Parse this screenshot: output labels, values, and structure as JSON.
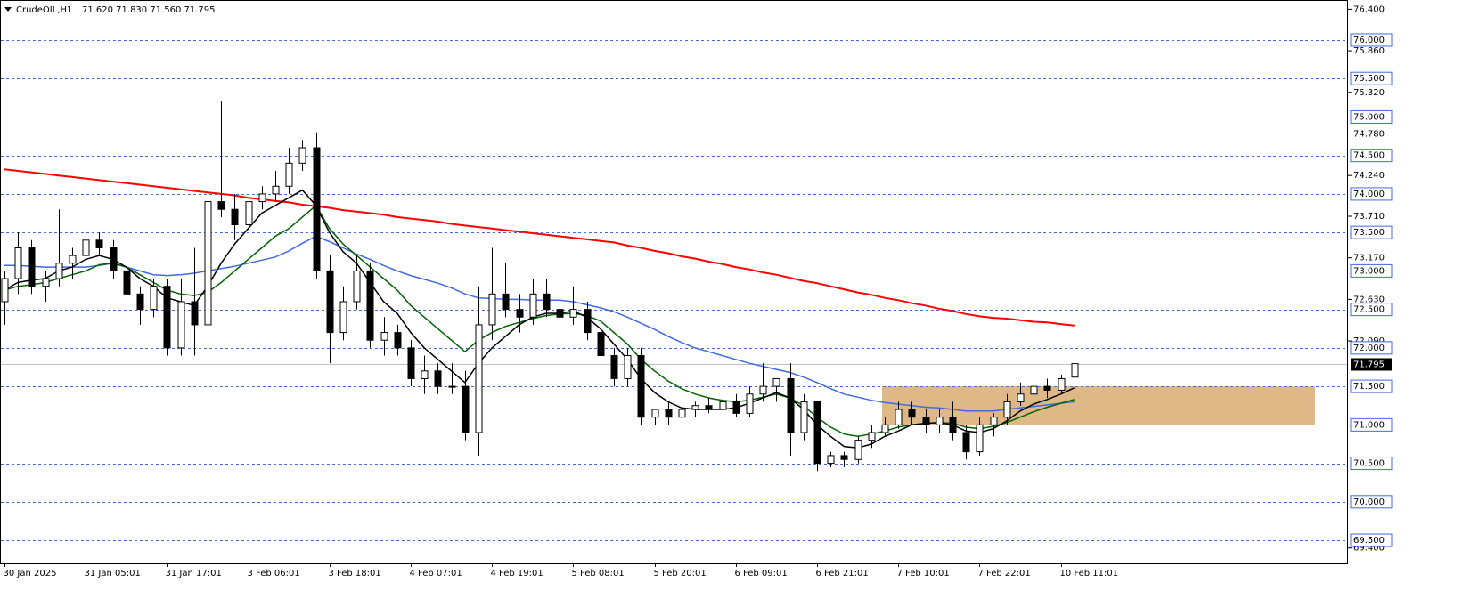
{
  "chart_data": {
    "type": "candlestick",
    "title": "CrudeOIL,H1",
    "header_values": "71.620 71.830 71.560 71.795",
    "categories": [
      "30 Jan 2025",
      null,
      null,
      null,
      null,
      null,
      "31 Jan 05:01",
      null,
      null,
      null,
      null,
      null,
      "31 Jan 17:01",
      null,
      null,
      null,
      null,
      null,
      "3 Feb 06:01",
      null,
      null,
      null,
      null,
      null,
      "3 Feb 18:01",
      null,
      null,
      null,
      null,
      null,
      "4 Feb 07:01",
      null,
      null,
      null,
      null,
      null,
      "4 Feb 19:01",
      null,
      null,
      null,
      null,
      null,
      "5 Feb 08:01",
      null,
      null,
      null,
      null,
      null,
      "5 Feb 20:01",
      null,
      null,
      null,
      null,
      null,
      "6 Feb 09:01",
      null,
      null,
      null,
      null,
      null,
      "6 Feb 21:01",
      null,
      null,
      null,
      null,
      null,
      "7 Feb 10:01",
      null,
      null,
      null,
      null,
      null,
      "7 Feb 22:01",
      null,
      null,
      null,
      null,
      null,
      "10 Feb 11:01",
      null
    ],
    "open": [
      72.6,
      72.9,
      73.3,
      72.8,
      72.9,
      73.1,
      73.2,
      73.4,
      73.3,
      73.0,
      72.7,
      72.5,
      72.8,
      72.0,
      72.6,
      72.3,
      73.9,
      73.8,
      73.6,
      73.9,
      74.0,
      74.1,
      74.4,
      74.6,
      73.0,
      72.2,
      72.6,
      73.0,
      72.1,
      72.2,
      72.0,
      71.6,
      71.7,
      71.5,
      71.5,
      70.9,
      72.3,
      72.7,
      72.5,
      72.4,
      72.7,
      72.5,
      72.4,
      72.5,
      72.2,
      71.9,
      71.6,
      71.9,
      71.1,
      71.2,
      71.1,
      71.2,
      71.25,
      71.2,
      71.3,
      71.15,
      71.4,
      71.5,
      71.6,
      70.9,
      71.3,
      70.5,
      70.6,
      70.55,
      70.8,
      70.9,
      71.0,
      71.2,
      71.1,
      71.0,
      71.1,
      70.9,
      70.65,
      71.0,
      71.1,
      71.3,
      71.4,
      71.5,
      71.45,
      71.62
    ],
    "high": [
      73.0,
      73.5,
      73.4,
      73.0,
      73.8,
      73.3,
      73.5,
      73.5,
      73.4,
      73.1,
      72.8,
      72.9,
      72.9,
      72.9,
      73.3,
      74.0,
      75.2,
      74.0,
      74.0,
      74.1,
      74.3,
      74.6,
      74.7,
      74.8,
      73.2,
      72.8,
      73.2,
      73.1,
      72.4,
      72.3,
      72.1,
      71.9,
      71.8,
      71.8,
      71.7,
      72.8,
      73.3,
      73.1,
      72.7,
      72.9,
      72.9,
      72.6,
      72.8,
      72.6,
      72.3,
      72.0,
      72.0,
      72.0,
      71.2,
      71.3,
      71.3,
      71.3,
      71.35,
      71.35,
      71.4,
      71.5,
      71.8,
      71.6,
      71.8,
      71.4,
      71.3,
      70.65,
      70.65,
      70.85,
      71.0,
      71.1,
      71.3,
      71.3,
      71.2,
      71.2,
      71.3,
      71.0,
      71.1,
      71.15,
      71.4,
      71.55,
      71.55,
      71.6,
      71.65,
      71.83
    ],
    "low": [
      72.3,
      72.7,
      72.7,
      72.6,
      72.8,
      72.9,
      73.1,
      73.2,
      72.9,
      72.6,
      72.3,
      72.4,
      71.9,
      71.9,
      71.9,
      72.2,
      73.7,
      73.4,
      73.5,
      73.8,
      73.9,
      74.0,
      74.3,
      72.9,
      71.8,
      72.1,
      72.5,
      72.0,
      71.9,
      71.9,
      71.5,
      71.4,
      71.4,
      71.4,
      70.8,
      70.6,
      72.1,
      72.4,
      72.2,
      72.3,
      72.4,
      72.3,
      72.3,
      72.1,
      71.8,
      71.5,
      71.5,
      71.0,
      71.0,
      71.0,
      71.1,
      71.1,
      71.15,
      71.1,
      71.1,
      71.1,
      71.3,
      71.3,
      70.6,
      70.8,
      70.4,
      70.45,
      70.45,
      70.5,
      70.7,
      70.85,
      70.95,
      71.0,
      70.9,
      70.9,
      70.8,
      70.55,
      70.6,
      70.85,
      71.0,
      71.25,
      71.3,
      71.35,
      71.4,
      71.56
    ],
    "close": [
      72.9,
      73.3,
      72.8,
      72.9,
      73.1,
      73.2,
      73.4,
      73.3,
      73.0,
      72.7,
      72.5,
      72.8,
      72.0,
      72.6,
      72.3,
      73.9,
      73.8,
      73.6,
      73.9,
      74.0,
      74.1,
      74.4,
      74.6,
      73.0,
      72.2,
      72.6,
      73.0,
      72.1,
      72.2,
      72.0,
      71.6,
      71.7,
      71.5,
      71.5,
      70.9,
      72.3,
      72.7,
      72.5,
      72.4,
      72.7,
      72.5,
      72.4,
      72.5,
      72.2,
      71.9,
      71.6,
      71.9,
      71.1,
      71.2,
      71.1,
      71.2,
      71.25,
      71.2,
      71.3,
      71.15,
      71.4,
      71.5,
      71.6,
      70.9,
      71.3,
      70.5,
      70.6,
      70.55,
      70.8,
      70.9,
      71.0,
      71.2,
      71.1,
      71.0,
      71.1,
      70.9,
      70.65,
      71.0,
      71.1,
      71.3,
      71.4,
      71.5,
      71.45,
      71.6,
      71.795
    ],
    "bull_color": "#ffffff",
    "bear_color": "#000000",
    "series": [
      {
        "color": "#ff0000",
        "values": [
          74.32,
          74.3,
          74.28,
          74.26,
          74.24,
          74.22,
          74.2,
          74.18,
          74.16,
          74.14,
          74.12,
          74.1,
          74.08,
          74.06,
          74.04,
          74.02,
          74.0,
          73.98,
          73.95,
          73.93,
          73.91,
          73.89,
          73.86,
          73.84,
          73.82,
          73.79,
          73.77,
          73.75,
          73.73,
          73.7,
          73.68,
          73.66,
          73.64,
          73.61,
          73.59,
          73.57,
          73.55,
          73.53,
          73.51,
          73.49,
          73.47,
          73.45,
          73.43,
          73.41,
          73.39,
          73.37,
          73.33,
          73.3,
          73.26,
          73.23,
          73.19,
          73.16,
          73.12,
          73.09,
          73.05,
          73.02,
          72.98,
          72.95,
          72.91,
          72.87,
          72.84,
          72.8,
          72.76,
          72.72,
          72.69,
          72.65,
          72.62,
          72.58,
          72.55,
          72.51,
          72.48,
          72.44,
          72.41,
          72.39,
          72.38,
          72.36,
          72.34,
          72.33,
          72.31,
          72.29
        ]
      },
      {
        "color": "#4169e1",
        "values": [
          73.07,
          73.07,
          73.06,
          73.05,
          73.05,
          73.05,
          73.05,
          73.07,
          73.1,
          73.05,
          73.0,
          72.95,
          72.94,
          72.95,
          72.97,
          73.0,
          73.03,
          73.06,
          73.1,
          73.14,
          73.18,
          73.26,
          73.36,
          73.45,
          73.38,
          73.3,
          73.22,
          73.15,
          73.07,
          73.0,
          72.94,
          72.89,
          72.84,
          72.78,
          72.7,
          72.65,
          72.64,
          72.63,
          72.63,
          72.62,
          72.62,
          72.62,
          72.6,
          72.56,
          72.52,
          72.47,
          72.4,
          72.32,
          72.24,
          72.15,
          72.07,
          72.0,
          71.95,
          71.9,
          71.85,
          71.8,
          71.76,
          71.72,
          71.68,
          71.62,
          71.55,
          71.47,
          71.4,
          71.36,
          71.32,
          71.29,
          71.27,
          71.25,
          71.23,
          71.22,
          71.2,
          71.18,
          71.18,
          71.18,
          71.2,
          71.22,
          71.24,
          71.26,
          71.28,
          71.3
        ]
      },
      {
        "color": "#006400",
        "values": [
          72.75,
          72.8,
          72.82,
          72.85,
          72.9,
          72.95,
          73.0,
          73.08,
          73.1,
          73.05,
          72.95,
          72.85,
          72.75,
          72.7,
          72.68,
          72.72,
          72.85,
          73.0,
          73.15,
          73.3,
          73.45,
          73.55,
          73.7,
          73.85,
          73.55,
          73.35,
          73.2,
          73.05,
          72.9,
          72.75,
          72.55,
          72.4,
          72.25,
          72.1,
          71.95,
          72.1,
          72.2,
          72.28,
          72.33,
          72.38,
          72.42,
          72.44,
          72.45,
          72.42,
          72.35,
          72.2,
          72.05,
          71.85,
          71.7,
          71.57,
          71.47,
          71.4,
          71.35,
          71.32,
          71.3,
          71.32,
          71.36,
          71.4,
          71.35,
          71.25,
          71.1,
          70.97,
          70.88,
          70.85,
          70.88,
          70.92,
          70.97,
          71.0,
          71.02,
          71.03,
          71.02,
          70.97,
          70.95,
          70.98,
          71.03,
          71.1,
          71.17,
          71.23,
          71.28,
          71.33
        ]
      },
      {
        "color": "#000000",
        "values": [
          72.75,
          72.85,
          72.88,
          72.9,
          73.0,
          73.05,
          73.15,
          73.2,
          73.15,
          73.05,
          72.9,
          72.8,
          72.65,
          72.6,
          72.55,
          72.8,
          73.1,
          73.35,
          73.55,
          73.75,
          73.85,
          73.95,
          74.05,
          73.85,
          73.5,
          73.25,
          73.1,
          72.85,
          72.6,
          72.45,
          72.2,
          72.0,
          71.85,
          71.7,
          71.55,
          71.8,
          72.0,
          72.15,
          72.3,
          72.4,
          72.45,
          72.45,
          72.48,
          72.4,
          72.25,
          72.05,
          71.85,
          71.6,
          71.42,
          71.3,
          71.22,
          71.2,
          71.2,
          71.2,
          71.22,
          71.28,
          71.35,
          71.42,
          71.35,
          71.2,
          71.0,
          70.85,
          70.72,
          70.7,
          70.75,
          70.85,
          70.92,
          71.0,
          71.02,
          71.03,
          71.0,
          70.92,
          70.9,
          70.95,
          71.05,
          71.18,
          71.27,
          71.33,
          71.4,
          71.48
        ]
      }
    ],
    "ylim": [
      69.2,
      76.52
    ],
    "yticks": [
      {
        "value": 76.4,
        "label": "76.400"
      },
      {
        "value": 75.86,
        "label": "75.860"
      },
      {
        "value": 75.32,
        "label": "75.320"
      },
      {
        "value": 74.78,
        "label": "74.780"
      },
      {
        "value": 74.24,
        "label": "74.240"
      },
      {
        "value": 73.71,
        "label": "73.710"
      },
      {
        "value": 73.17,
        "label": "73.170"
      },
      {
        "value": 72.63,
        "label": "72.630"
      },
      {
        "value": 72.09,
        "label": "72.090"
      },
      {
        "value": 69.4,
        "label": "69.400"
      }
    ],
    "levels": [
      {
        "value": 76,
        "label": "76.000"
      },
      {
        "value": 75.5,
        "label": "75.500"
      },
      {
        "value": 75,
        "label": "75.000"
      },
      {
        "value": 74.5,
        "label": "74.500"
      },
      {
        "value": 74,
        "label": "74.000"
      },
      {
        "value": 73.5,
        "label": "73.500"
      },
      {
        "value": 73,
        "label": "73.000"
      },
      {
        "value": 72.5,
        "label": "72.500"
      },
      {
        "value": 72,
        "label": "72.000"
      },
      {
        "value": 71.5,
        "label": "71.500"
      },
      {
        "value": 71,
        "label": "71.000"
      },
      {
        "value": 70.5,
        "label": "70.500"
      },
      {
        "value": 70,
        "label": "70.000"
      },
      {
        "value": 69.5,
        "label": "69.500"
      }
    ],
    "level_color": "#4169e1",
    "last_price": {
      "value": 71.795,
      "label": "71.795"
    },
    "zone": {
      "from": 71.0,
      "to": 71.5,
      "color": "#deb887"
    }
  }
}
